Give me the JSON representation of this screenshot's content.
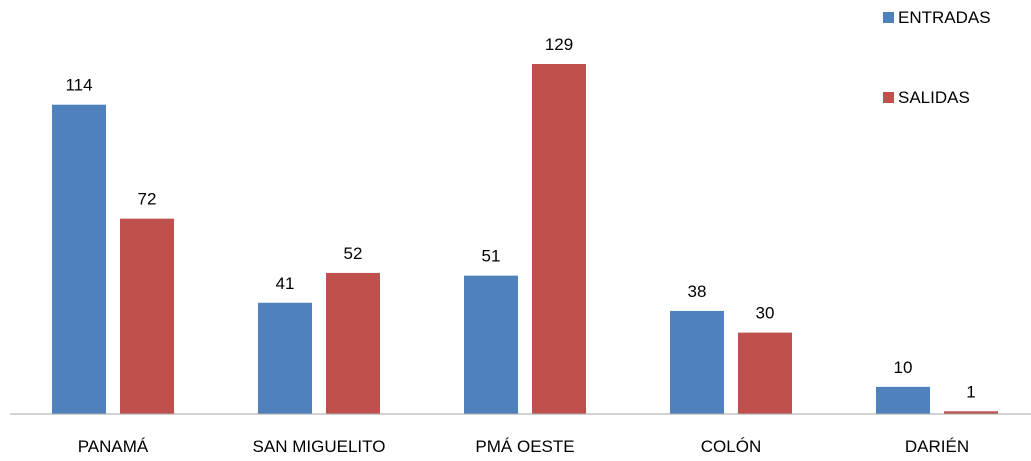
{
  "chart_data": {
    "type": "bar",
    "categories": [
      "PANAMÁ",
      "SAN MIGUELITO",
      "PMÁ OESTE",
      "COLÓN",
      "DARIÉN"
    ],
    "series": [
      {
        "name": "ENTRADAS",
        "values": [
          114,
          41,
          51,
          38,
          10
        ],
        "color": "#4F81BD"
      },
      {
        "name": "SALIDAS",
        "values": [
          72,
          52,
          129,
          30,
          1
        ],
        "color": "#C0504D"
      }
    ],
    "ylim": [
      0,
      129
    ],
    "grid": false,
    "legend": "top-right",
    "data_labels": true
  }
}
